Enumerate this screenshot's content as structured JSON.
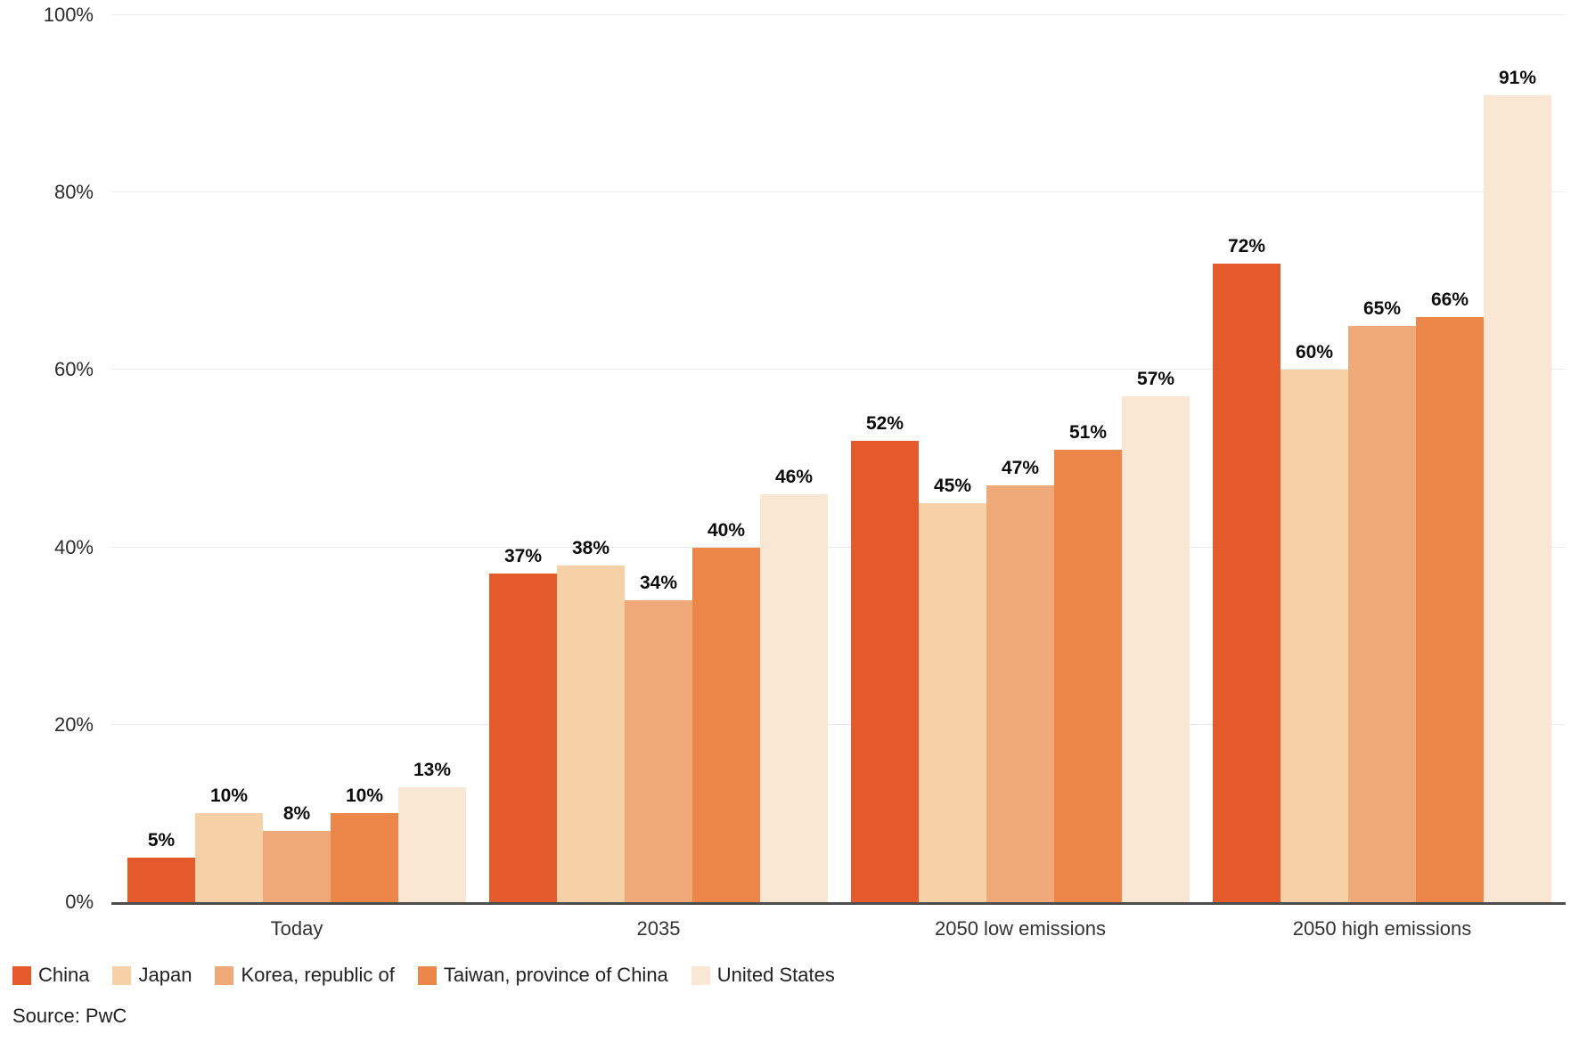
{
  "chart_data": {
    "type": "bar",
    "categories": [
      "Today",
      "2035",
      "2050 low emissions",
      "2050 high emissions"
    ],
    "series": [
      {
        "name": "China",
        "color": "#E45A2B",
        "values": [
          5,
          37,
          52,
          72
        ]
      },
      {
        "name": "Japan",
        "color": "#F6D0A6",
        "values": [
          10,
          38,
          45,
          60
        ]
      },
      {
        "name": "Korea, republic of",
        "color": "#F0A978",
        "values": [
          8,
          34,
          47,
          65
        ]
      },
      {
        "name": "Taiwan, province of China",
        "color": "#EC8749",
        "values": [
          10,
          40,
          51,
          66
        ]
      },
      {
        "name": "United States",
        "color": "#FAE7D3",
        "values": [
          13,
          46,
          57,
          91
        ]
      }
    ],
    "value_suffix": "%",
    "ylim": [
      0,
      100
    ],
    "yticks": [
      0,
      20,
      40,
      60,
      80,
      100
    ],
    "ytick_suffix": "%",
    "grid": true,
    "legend_position": "bottom-left",
    "source": "Source: PwC",
    "colors": {
      "axis_line": "#4d4d4d",
      "gridline": "#ebebeb",
      "tick_text": "#2d2d2d",
      "data_label": "#0d0d0d",
      "background": "#ffffff"
    }
  }
}
